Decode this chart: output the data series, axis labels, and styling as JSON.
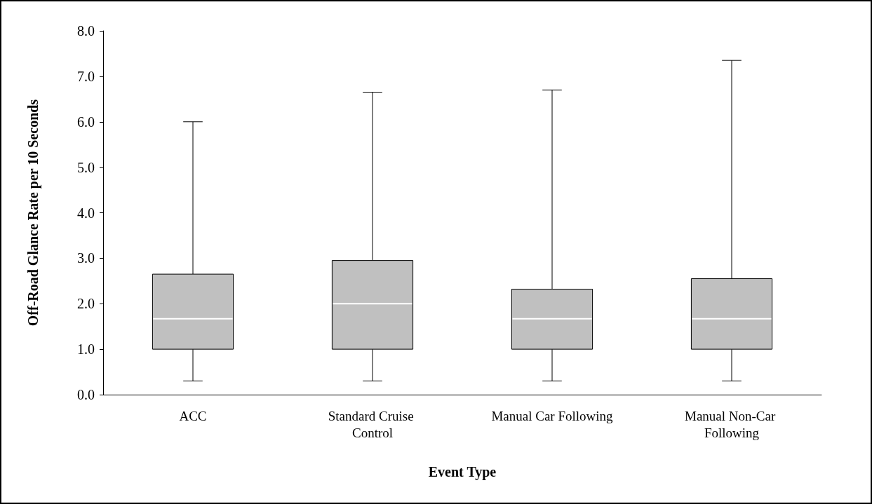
{
  "chart_data": {
    "type": "box",
    "xlabel": "Event Type",
    "ylabel": "Off-Road Glance Rate per 10 Seconds",
    "categories": [
      "ACC",
      "Standard Cruise Control",
      "Manual Car Following",
      "Manual Non-Car Following"
    ],
    "boxes": [
      {
        "low": 0.3,
        "q1": 1.0,
        "median": 1.67,
        "q3": 2.65,
        "high": 6.0
      },
      {
        "low": 0.3,
        "q1": 1.0,
        "median": 2.0,
        "q3": 2.95,
        "high": 6.65
      },
      {
        "low": 0.3,
        "q1": 1.0,
        "median": 1.67,
        "q3": 2.32,
        "high": 6.7
      },
      {
        "low": 0.3,
        "q1": 1.0,
        "median": 1.67,
        "q3": 2.55,
        "high": 7.35
      }
    ],
    "color": "#c0c0c0",
    "ylim": [
      0,
      8
    ],
    "yticks": [
      {
        "value": 0,
        "label": "0.0"
      },
      {
        "value": 1,
        "label": "1.0"
      },
      {
        "value": 2,
        "label": "2.0"
      },
      {
        "value": 3,
        "label": "3.0"
      },
      {
        "value": 4,
        "label": "4.0"
      },
      {
        "value": 5,
        "label": "5.0"
      },
      {
        "value": 6,
        "label": "6.0"
      },
      {
        "value": 7,
        "label": "7.0"
      },
      {
        "value": 8,
        "label": "8.0"
      }
    ],
    "grid": false
  }
}
